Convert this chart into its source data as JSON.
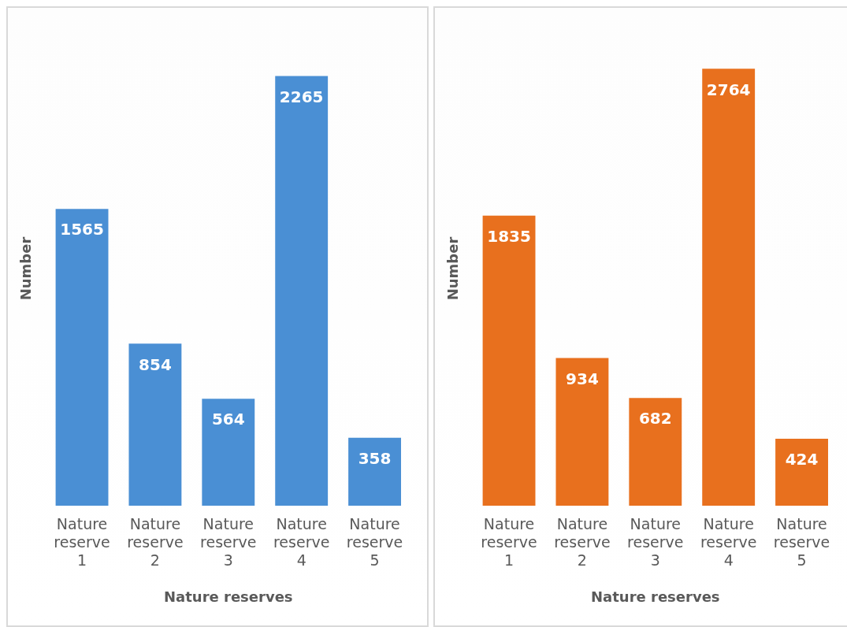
{
  "chart_data": [
    {
      "type": "bar",
      "xlabel": "Nature reserves",
      "ylabel": "Number",
      "categories": [
        "Nature reserve 1",
        "Nature reserve 2",
        "Nature reserve 3",
        "Nature reserve 4",
        "Nature reserve 5"
      ],
      "values": [
        1565,
        854,
        564,
        2265,
        358
      ],
      "color": "#4a8fd4",
      "data_labels": true,
      "grid": false,
      "legend": false
    },
    {
      "type": "bar",
      "xlabel": "Nature reserves",
      "ylabel": "Number",
      "categories": [
        "Nature reserve 1",
        "Nature reserve 2",
        "Nature reserve 3",
        "Nature reserve 4",
        "Nature reserve 5"
      ],
      "values": [
        1835,
        934,
        682,
        2764,
        424
      ],
      "color": "#e8701e",
      "data_labels": true,
      "grid": false,
      "legend": false
    }
  ]
}
